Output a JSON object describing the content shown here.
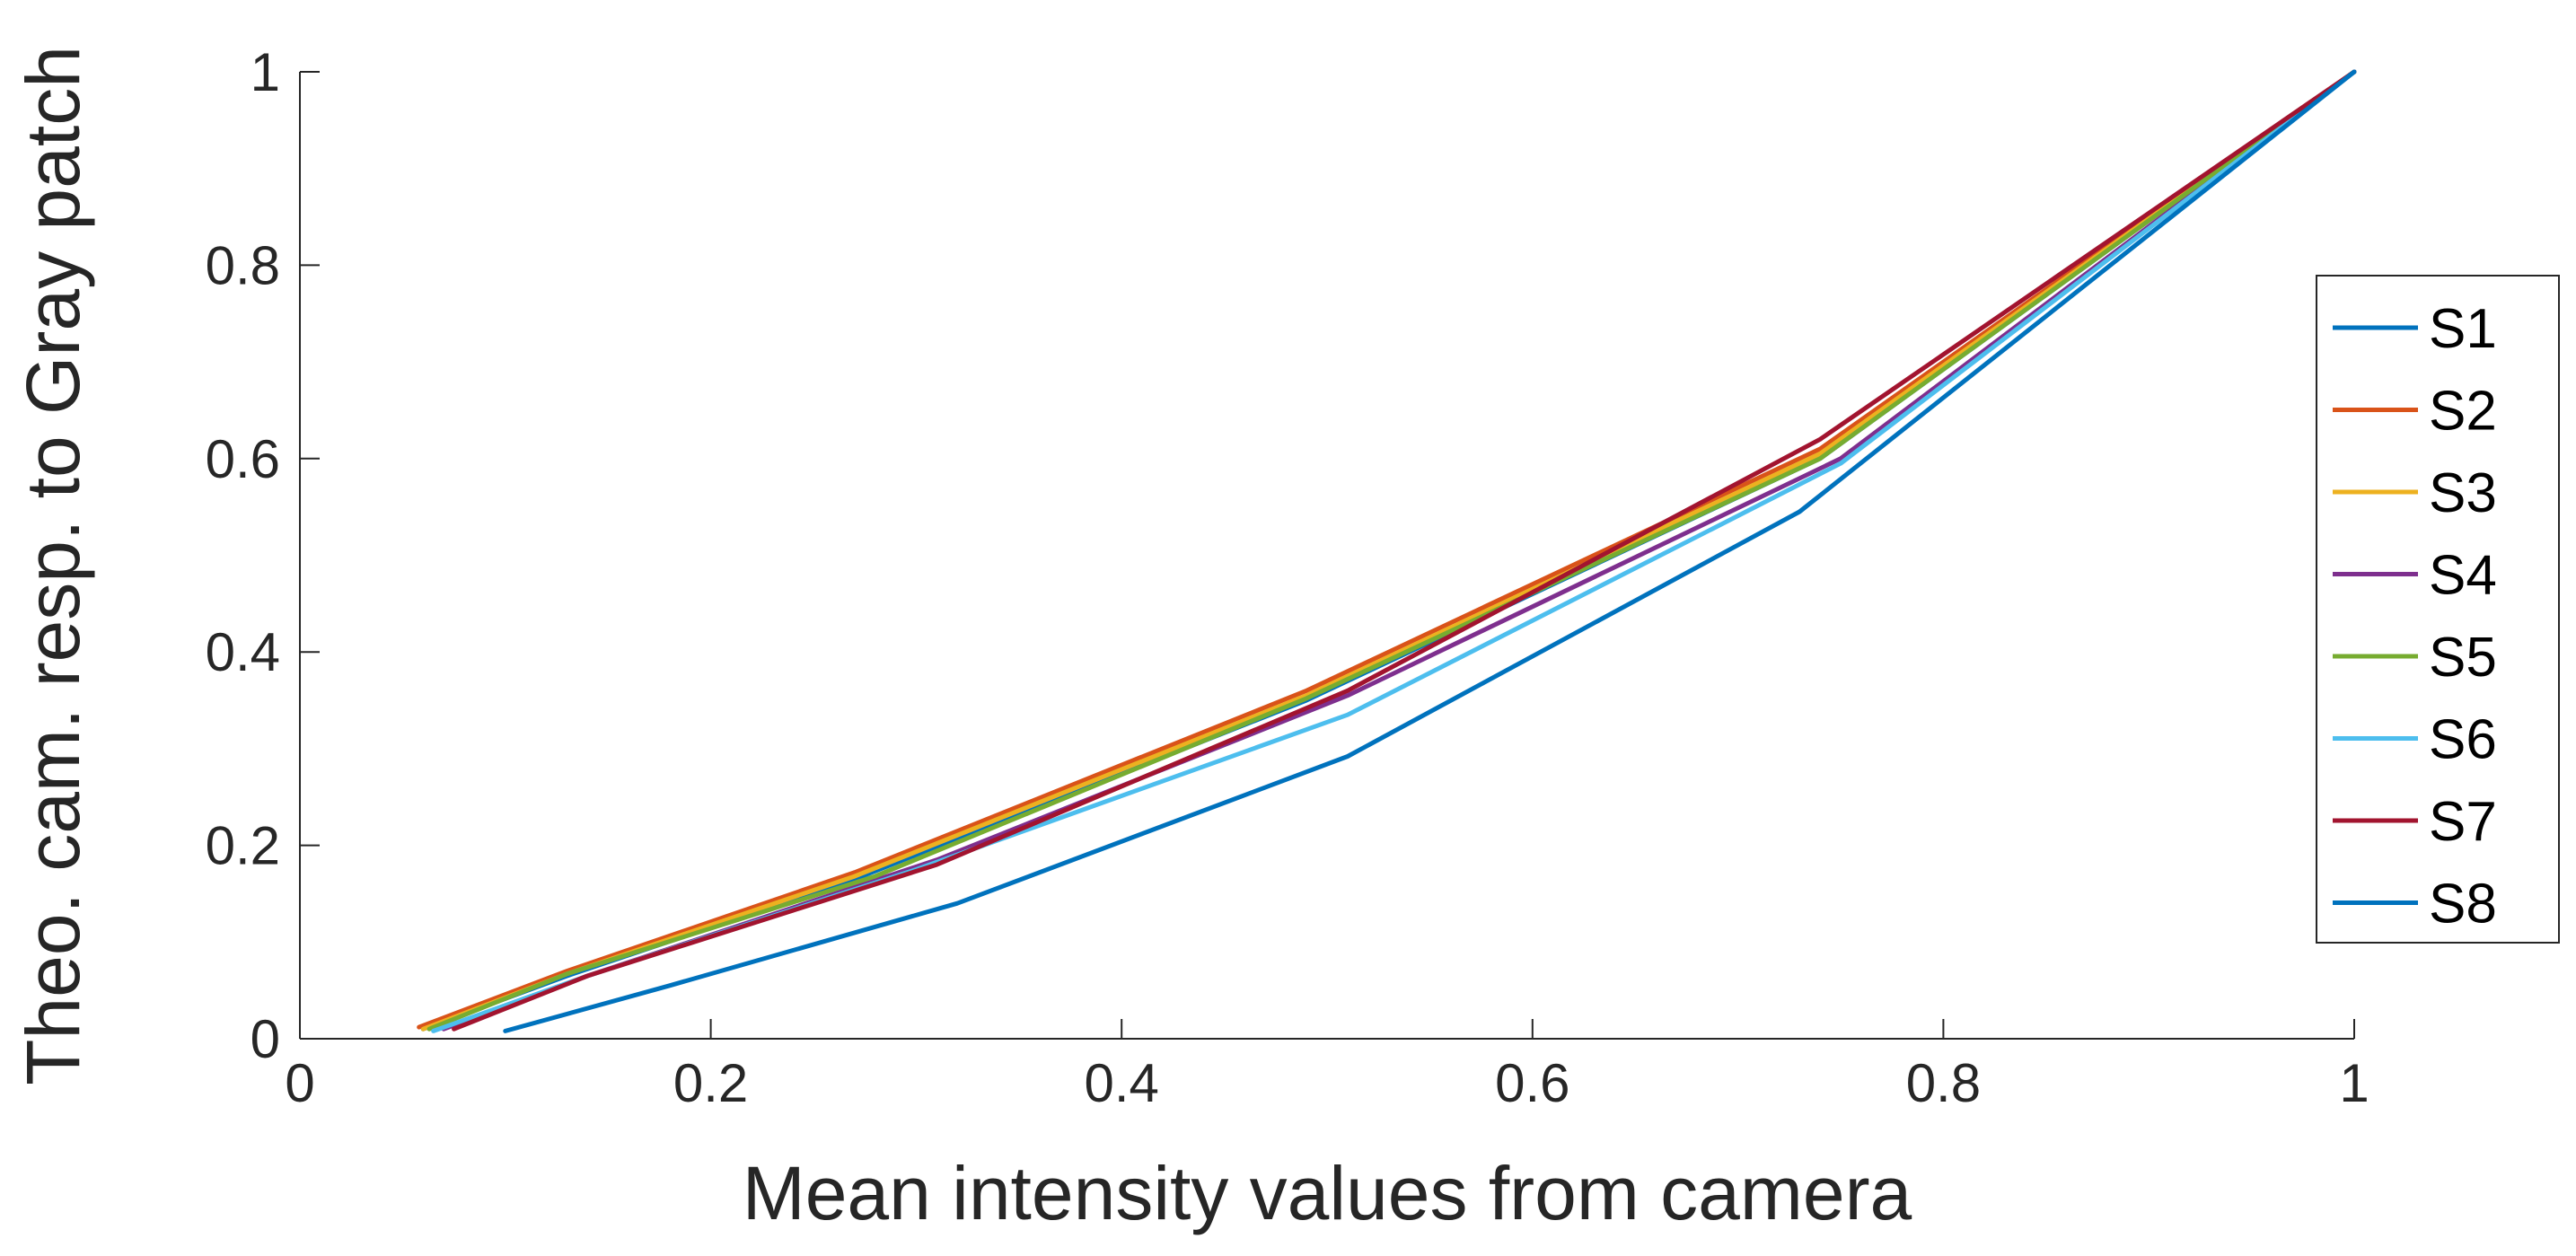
{
  "chart_data": {
    "type": "line",
    "xlabel": "Mean intensity values from camera",
    "ylabel": "Theo. cam. resp. to Gray patch",
    "xlim": [
      0,
      1
    ],
    "ylim": [
      0,
      1
    ],
    "xticks": [
      "0",
      "0.2",
      "0.4",
      "0.6",
      "0.8",
      "1"
    ],
    "yticks": [
      "0",
      "0.2",
      "0.4",
      "0.6",
      "0.8",
      "1"
    ],
    "xtick_values": [
      0,
      0.2,
      0.4,
      0.6,
      0.8,
      1
    ],
    "ytick_values": [
      0,
      0.2,
      0.4,
      0.6,
      0.8,
      1
    ],
    "grid": false,
    "legend_position": "right",
    "series": [
      {
        "name": "S1",
        "color": "#0072BD",
        "x": [
          0.06,
          0.13,
          0.27,
          0.49,
          0.74,
          1.0
        ],
        "y": [
          0.01,
          0.065,
          0.165,
          0.35,
          0.6,
          1.0
        ]
      },
      {
        "name": "S2",
        "color": "#D95319",
        "x": [
          0.058,
          0.13,
          0.27,
          0.49,
          0.74,
          1.0
        ],
        "y": [
          0.012,
          0.07,
          0.172,
          0.36,
          0.61,
          1.0
        ]
      },
      {
        "name": "S3",
        "color": "#EDB120",
        "x": [
          0.06,
          0.13,
          0.27,
          0.49,
          0.74,
          1.0
        ],
        "y": [
          0.01,
          0.067,
          0.168,
          0.355,
          0.605,
          1.0
        ]
      },
      {
        "name": "S4",
        "color": "#7E2F8E",
        "x": [
          0.07,
          0.14,
          0.31,
          0.51,
          0.75,
          1.0
        ],
        "y": [
          0.01,
          0.065,
          0.185,
          0.355,
          0.6,
          1.0
        ]
      },
      {
        "name": "S5",
        "color": "#77AC30",
        "x": [
          0.063,
          0.13,
          0.28,
          0.49,
          0.74,
          1.0
        ],
        "y": [
          0.01,
          0.067,
          0.168,
          0.352,
          0.6,
          1.0
        ]
      },
      {
        "name": "S6",
        "color": "#4DBEEE",
        "x": [
          0.065,
          0.14,
          0.3,
          0.51,
          0.75,
          1.0
        ],
        "y": [
          0.008,
          0.065,
          0.175,
          0.335,
          0.595,
          1.0
        ]
      },
      {
        "name": "S7",
        "color": "#A2142F",
        "x": [
          0.075,
          0.14,
          0.31,
          0.51,
          0.74,
          1.0
        ],
        "y": [
          0.01,
          0.065,
          0.18,
          0.36,
          0.62,
          1.0
        ]
      },
      {
        "name": "S8",
        "color": "#0072BD",
        "x": [
          0.1,
          0.18,
          0.32,
          0.51,
          0.73,
          1.0
        ],
        "y": [
          0.008,
          0.055,
          0.14,
          0.292,
          0.545,
          1.0
        ]
      }
    ]
  }
}
